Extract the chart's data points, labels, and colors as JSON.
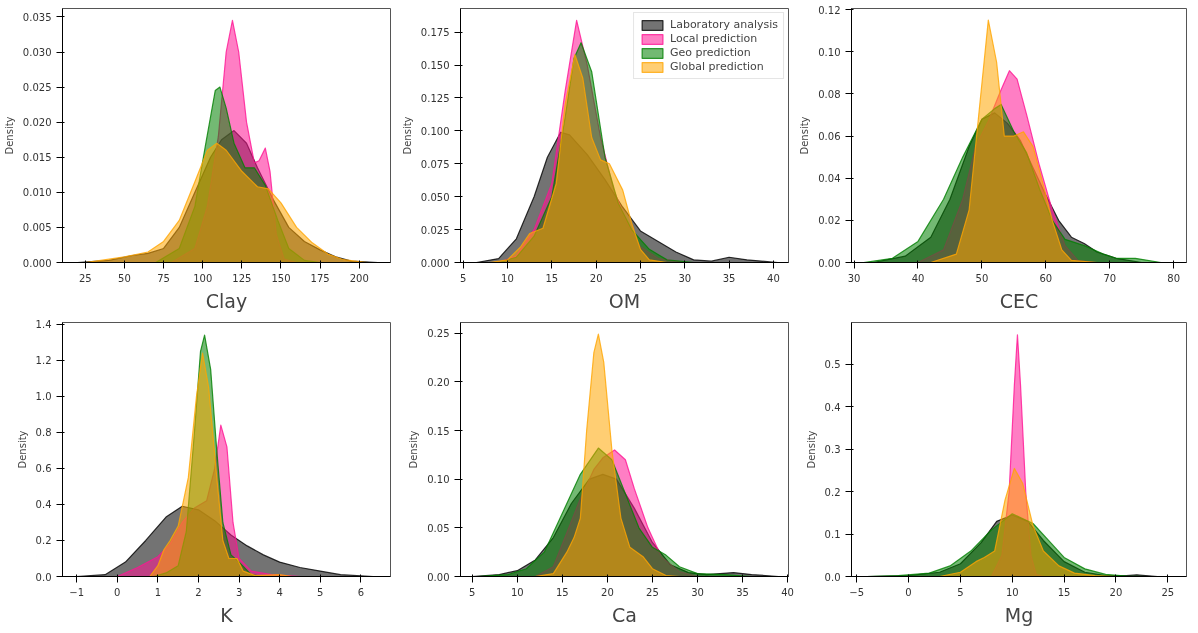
{
  "chart_data": [
    {
      "type": "area",
      "xlabel": "Clay",
      "ylabel": "Density",
      "xlim": [
        10.4,
        220
      ],
      "ylim": [
        0,
        0.0362
      ],
      "xticks": [
        25,
        50,
        75,
        100,
        125,
        150,
        175,
        200
      ],
      "yticks": [
        {
          "value": 0,
          "label": "0.000"
        },
        {
          "value": 0.005,
          "label": "0.005"
        },
        {
          "value": 0.01,
          "label": "0.010"
        },
        {
          "value": 0.015,
          "label": "0.015"
        },
        {
          "value": 0.02,
          "label": "0.020"
        },
        {
          "value": 0.025,
          "label": "0.025"
        },
        {
          "value": 0.03,
          "label": "0.030"
        },
        {
          "value": 0.035,
          "label": "0.035"
        }
      ],
      "series": [
        {
          "color": "#000000",
          "x": [
            20,
            40,
            55,
            65,
            75,
            85,
            95,
            105,
            112,
            120,
            128,
            135,
            145,
            155,
            165,
            175,
            185,
            195,
            212
          ],
          "values": [
            0,
            0.0003,
            0.001,
            0.0013,
            0.002,
            0.005,
            0.01,
            0.015,
            0.0175,
            0.0188,
            0.017,
            0.0135,
            0.009,
            0.005,
            0.003,
            0.0018,
            0.0008,
            0.0002,
            0
          ]
        },
        {
          "color": "#ff1493",
          "x": [
            80,
            95,
            103,
            110,
            115,
            119,
            123,
            128,
            133,
            136,
            140,
            143,
            147,
            152,
            160
          ],
          "values": [
            0,
            0.002,
            0.008,
            0.018,
            0.03,
            0.0345,
            0.03,
            0.02,
            0.0142,
            0.0145,
            0.0163,
            0.013,
            0.004,
            0.0005,
            0
          ]
        },
        {
          "color": "#008000",
          "x": [
            70,
            85,
            95,
            102,
            108,
            111,
            115,
            120,
            127,
            133,
            140,
            148,
            155,
            165,
            175
          ],
          "values": [
            0,
            0.002,
            0.008,
            0.017,
            0.0245,
            0.025,
            0.022,
            0.017,
            0.0135,
            0.0135,
            0.011,
            0.006,
            0.002,
            0.0003,
            0
          ]
        },
        {
          "color": "#ffa500",
          "x": [
            25,
            50,
            65,
            75,
            85,
            95,
            103,
            109,
            115,
            125,
            135,
            142,
            150,
            160,
            170,
            180,
            190,
            205
          ],
          "values": [
            0,
            0.0008,
            0.0015,
            0.003,
            0.006,
            0.0115,
            0.016,
            0.017,
            0.016,
            0.013,
            0.0108,
            0.0105,
            0.0085,
            0.005,
            0.0028,
            0.0012,
            0.0004,
            0
          ]
        }
      ]
    },
    {
      "type": "area",
      "xlabel": "OM",
      "ylabel": "Density",
      "xlim": [
        4.7,
        41.7
      ],
      "ylim": [
        0,
        0.193
      ],
      "xticks": [
        5,
        10,
        15,
        20,
        25,
        30,
        35,
        40
      ],
      "yticks": [
        {
          "value": 0,
          "label": "0.000"
        },
        {
          "value": 0.025,
          "label": "0.025"
        },
        {
          "value": 0.05,
          "label": "0.050"
        },
        {
          "value": 0.075,
          "label": "0.075"
        },
        {
          "value": 0.1,
          "label": "0.100"
        },
        {
          "value": 0.125,
          "label": "0.125"
        },
        {
          "value": 0.15,
          "label": "0.150"
        },
        {
          "value": 0.175,
          "label": "0.175"
        }
      ],
      "legend": "top right",
      "series": [
        {
          "name": "Laboratory analysis",
          "color": "#000000",
          "x": [
            6.5,
            9,
            11,
            13,
            14.5,
            16,
            17,
            19,
            21,
            23,
            25,
            27,
            29,
            31,
            33,
            35,
            37,
            40.5
          ],
          "values": [
            0,
            0.003,
            0.018,
            0.05,
            0.08,
            0.099,
            0.097,
            0.082,
            0.063,
            0.042,
            0.024,
            0.016,
            0.008,
            0.002,
            0.001,
            0.004,
            0.002,
            0
          ]
        },
        {
          "name": "Local prediction",
          "color": "#ff1493",
          "x": [
            9,
            11,
            13,
            15,
            16.5,
            17.8,
            19,
            20.5,
            22,
            23.5,
            25,
            27,
            30
          ],
          "values": [
            0,
            0.005,
            0.025,
            0.06,
            0.13,
            0.184,
            0.15,
            0.095,
            0.055,
            0.03,
            0.012,
            0.003,
            0
          ]
        },
        {
          "name": "Geo prediction",
          "color": "#008000",
          "x": [
            9,
            11,
            13,
            15,
            16.5,
            17.5,
            18.3,
            19.5,
            21,
            22.5,
            24,
            26,
            28,
            31
          ],
          "values": [
            0,
            0.004,
            0.02,
            0.05,
            0.11,
            0.155,
            0.167,
            0.145,
            0.08,
            0.045,
            0.025,
            0.01,
            0.002,
            0
          ]
        },
        {
          "name": "Global prediction",
          "color": "#ffa500",
          "x": [
            8,
            10,
            11.5,
            12.5,
            14,
            15.5,
            16.5,
            17.6,
            18.5,
            19.5,
            20.5,
            21.5,
            23,
            24,
            25,
            26,
            28
          ],
          "values": [
            0,
            0.002,
            0.012,
            0.022,
            0.026,
            0.06,
            0.12,
            0.158,
            0.14,
            0.095,
            0.078,
            0.075,
            0.055,
            0.03,
            0.01,
            0.002,
            0
          ]
        }
      ]
    },
    {
      "type": "area",
      "xlabel": "CEC",
      "ylabel": "Density",
      "xlim": [
        29.6,
        82
      ],
      "ylim": [
        0,
        0.1205
      ],
      "xticks": [
        30,
        40,
        50,
        60,
        70,
        80
      ],
      "yticks": [
        {
          "value": 0,
          "label": "0.00"
        },
        {
          "value": 0.02,
          "label": "0.02"
        },
        {
          "value": 0.04,
          "label": "0.04"
        },
        {
          "value": 0.06,
          "label": "0.06"
        },
        {
          "value": 0.08,
          "label": "0.08"
        },
        {
          "value": 0.1,
          "label": "0.10"
        },
        {
          "value": 0.12,
          "label": "0.12"
        }
      ],
      "series": [
        {
          "color": "#000000",
          "x": [
            33,
            38,
            42,
            45,
            48,
            50,
            52,
            54,
            56,
            58,
            60,
            62,
            64,
            66,
            68,
            71,
            75
          ],
          "values": [
            0,
            0.003,
            0.012,
            0.03,
            0.055,
            0.068,
            0.071,
            0.066,
            0.058,
            0.045,
            0.032,
            0.02,
            0.012,
            0.009,
            0.005,
            0.002,
            0
          ]
        },
        {
          "color": "#ff1493",
          "x": [
            40,
            44,
            47,
            49,
            51,
            53,
            54.3,
            55.5,
            57,
            59,
            61,
            63,
            65,
            68
          ],
          "values": [
            0,
            0.006,
            0.03,
            0.055,
            0.067,
            0.082,
            0.091,
            0.087,
            0.07,
            0.046,
            0.025,
            0.008,
            0.001,
            0
          ]
        },
        {
          "color": "#008000",
          "x": [
            31.5,
            36,
            40,
            44,
            47,
            50,
            52,
            53,
            55,
            57,
            59,
            61,
            63,
            66,
            69,
            71,
            74,
            78
          ],
          "values": [
            0,
            0.002,
            0.01,
            0.03,
            0.05,
            0.068,
            0.073,
            0.075,
            0.062,
            0.052,
            0.035,
            0.02,
            0.011,
            0.008,
            0.004,
            0.002,
            0.002,
            0
          ]
        },
        {
          "color": "#ffa500",
          "x": [
            42,
            46,
            48,
            49.5,
            51,
            52.3,
            53.5,
            55,
            56.5,
            58,
            59.5,
            61,
            62.5,
            64,
            68
          ],
          "values": [
            0,
            0.004,
            0.025,
            0.07,
            0.115,
            0.095,
            0.06,
            0.06,
            0.062,
            0.055,
            0.038,
            0.02,
            0.006,
            0.001,
            0
          ]
        }
      ]
    },
    {
      "type": "area",
      "xlabel": "K",
      "ylabel": "Density",
      "xlim": [
        -1.35,
        6.73
      ],
      "ylim": [
        0,
        1.41
      ],
      "xticks": [
        {
          "value": -1,
          "label": "−1"
        },
        0,
        1,
        2,
        3,
        4,
        5,
        6
      ],
      "yticks": [
        {
          "value": 0,
          "label": "0.0"
        },
        {
          "value": 0.2,
          "label": "0.2"
        },
        {
          "value": 0.4,
          "label": "0.4"
        },
        {
          "value": 0.6,
          "label": "0.6"
        },
        {
          "value": 0.8,
          "label": "0.8"
        },
        {
          "value": 1,
          "label": "1.0"
        },
        {
          "value": 1.2,
          "label": "1.2"
        },
        {
          "value": 1.4,
          "label": "1.4"
        }
      ],
      "series": [
        {
          "color": "#000000",
          "x": [
            -1,
            -0.3,
            0.2,
            0.7,
            1.2,
            1.6,
            2,
            2.4,
            2.8,
            3.2,
            3.6,
            4,
            4.5,
            5,
            5.5,
            6.3
          ],
          "values": [
            0,
            0.01,
            0.08,
            0.2,
            0.33,
            0.39,
            0.37,
            0.31,
            0.23,
            0.17,
            0.12,
            0.08,
            0.05,
            0.03,
            0.01,
            0
          ]
        },
        {
          "color": "#ff1493",
          "x": [
            0,
            0.5,
            1,
            1.3,
            1.6,
            1.9,
            2.2,
            2.4,
            2.55,
            2.7,
            2.85,
            3,
            3.3,
            3.8,
            4.5
          ],
          "values": [
            0,
            0.05,
            0.11,
            0.18,
            0.3,
            0.38,
            0.42,
            0.6,
            0.84,
            0.72,
            0.3,
            0.1,
            0.03,
            0.01,
            0
          ]
        },
        {
          "color": "#008000",
          "x": [
            0.9,
            1.2,
            1.5,
            1.7,
            1.9,
            2.05,
            2.15,
            2.3,
            2.45,
            2.6,
            2.8,
            3,
            3.3,
            3.6
          ],
          "values": [
            0,
            0.02,
            0.06,
            0.25,
            0.8,
            1.25,
            1.34,
            1.15,
            0.7,
            0.3,
            0.12,
            0.08,
            0.01,
            0
          ]
        },
        {
          "color": "#ffa500",
          "x": [
            0.8,
            1,
            1.15,
            1.3,
            1.5,
            1.75,
            1.95,
            2.1,
            2.25,
            2.45,
            2.6,
            2.75,
            2.95,
            3.1,
            3.4,
            4,
            4.3
          ],
          "values": [
            0,
            0.06,
            0.15,
            0.2,
            0.28,
            0.55,
            1,
            1.24,
            1.05,
            0.55,
            0.2,
            0.1,
            0.1,
            0.03,
            0.005,
            0.01,
            0
          ]
        }
      ]
    },
    {
      "type": "area",
      "xlabel": "Ca",
      "ylabel": "Density",
      "xlim": [
        3.7,
        40.1
      ],
      "ylim": [
        0,
        0.261
      ],
      "xticks": [
        5,
        10,
        15,
        20,
        25,
        30,
        35,
        40
      ],
      "yticks": [
        {
          "value": 0,
          "label": "0.00"
        },
        {
          "value": 0.05,
          "label": "0.05"
        },
        {
          "value": 0.1,
          "label": "0.10"
        },
        {
          "value": 0.15,
          "label": "0.15"
        },
        {
          "value": 0.2,
          "label": "0.20"
        },
        {
          "value": 0.25,
          "label": "0.25"
        }
      ],
      "series": [
        {
          "color": "#000000",
          "x": [
            5,
            8,
            10,
            12,
            14,
            16,
            18,
            19.5,
            21,
            23,
            25,
            27,
            29,
            31,
            34,
            36,
            39
          ],
          "values": [
            0,
            0.002,
            0.006,
            0.017,
            0.04,
            0.075,
            0.1,
            0.105,
            0.1,
            0.07,
            0.035,
            0.012,
            0.004,
            0.002,
            0.004,
            0.002,
            0
          ]
        },
        {
          "color": "#ff1493",
          "x": [
            12,
            14,
            15.5,
            17,
            18.5,
            19.5,
            20.8,
            22,
            23,
            24.5,
            26,
            28,
            30
          ],
          "values": [
            0,
            0.01,
            0.045,
            0.08,
            0.11,
            0.122,
            0.13,
            0.12,
            0.09,
            0.05,
            0.02,
            0.005,
            0
          ]
        },
        {
          "color": "#008000",
          "x": [
            5.5,
            9,
            11,
            13,
            15,
            17,
            19,
            20.5,
            22,
            23.5,
            25,
            26.5,
            28,
            30,
            33,
            36
          ],
          "values": [
            0,
            0.002,
            0.008,
            0.025,
            0.065,
            0.105,
            0.132,
            0.12,
            0.085,
            0.05,
            0.03,
            0.022,
            0.01,
            0.003,
            0.002,
            0
          ]
        },
        {
          "color": "#ffa500",
          "x": [
            12,
            14,
            15.5,
            16.3,
            17,
            17.7,
            18.5,
            19,
            19.6,
            20.5,
            21.5,
            22.5,
            24,
            25,
            26.5,
            28
          ],
          "values": [
            0,
            0.003,
            0.025,
            0.04,
            0.06,
            0.15,
            0.23,
            0.249,
            0.22,
            0.13,
            0.06,
            0.03,
            0.02,
            0.008,
            0.001,
            0
          ]
        }
      ]
    },
    {
      "type": "area",
      "xlabel": "Mg",
      "ylabel": "Density",
      "xlim": [
        -5.5,
        26.8
      ],
      "ylim": [
        0,
        0.599
      ],
      "xticks": [
        {
          "value": -5,
          "label": "−5"
        },
        0,
        5,
        10,
        15,
        20,
        25
      ],
      "yticks": [
        {
          "value": 0,
          "label": "0.0"
        },
        {
          "value": 0.1,
          "label": "0.1"
        },
        {
          "value": 0.2,
          "label": "0.2"
        },
        {
          "value": 0.3,
          "label": "0.3"
        },
        {
          "value": 0.4,
          "label": "0.4"
        },
        {
          "value": 0.5,
          "label": "0.5"
        }
      ],
      "series": [
        {
          "color": "#000000",
          "x": [
            -4,
            0,
            3,
            5,
            7,
            8.5,
            10,
            11.5,
            13,
            15,
            17,
            19,
            21,
            22,
            24
          ],
          "values": [
            0,
            0.002,
            0.01,
            0.03,
            0.08,
            0.13,
            0.145,
            0.13,
            0.085,
            0.035,
            0.01,
            0.002,
            0.002,
            0.004,
            0
          ]
        },
        {
          "color": "#ff1493",
          "x": [
            8,
            9,
            9.7,
            10.2,
            10.5,
            10.8,
            11.3,
            11.8,
            12.3,
            13
          ],
          "values": [
            0,
            0.05,
            0.2,
            0.45,
            0.57,
            0.45,
            0.2,
            0.05,
            0.005,
            0
          ]
        },
        {
          "color": "#008000",
          "x": [
            -4,
            -1,
            2,
            4,
            6,
            8,
            10,
            12,
            13.5,
            15,
            17,
            19,
            21,
            23
          ],
          "values": [
            0,
            0.002,
            0.008,
            0.025,
            0.06,
            0.11,
            0.148,
            0.125,
            0.085,
            0.045,
            0.018,
            0.005,
            0.001,
            0
          ]
        },
        {
          "color": "#ffa500",
          "x": [
            3,
            5,
            6.5,
            7.3,
            8.3,
            9.3,
            10.2,
            11,
            12,
            13,
            14.5,
            16,
            18,
            20
          ],
          "values": [
            0,
            0.01,
            0.035,
            0.045,
            0.06,
            0.18,
            0.255,
            0.22,
            0.12,
            0.06,
            0.025,
            0.008,
            0.002,
            0
          ]
        }
      ]
    }
  ]
}
